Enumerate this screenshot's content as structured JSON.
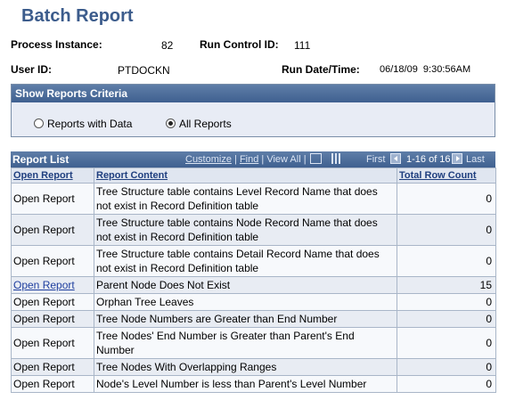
{
  "page": {
    "title": "Batch Report"
  },
  "header": {
    "process_instance_label": "Process Instance:",
    "process_instance_value": "82",
    "run_control_label": "Run Control ID:",
    "run_control_value": "111",
    "user_id_label": "User ID:",
    "user_id_value": "PTDOCKN",
    "run_datetime_label": "Run Date/Time:",
    "run_datetime_value": "06/18/09  9:30:56AM"
  },
  "criteria": {
    "title": "Show Reports Criteria",
    "options": [
      {
        "label": "Reports with Data",
        "selected": false
      },
      {
        "label": "All Reports",
        "selected": true
      }
    ]
  },
  "report_list": {
    "title": "Report List",
    "customize": "Customize",
    "find": "Find",
    "view_all": "View All",
    "first": "First",
    "range": "1-16 of 16",
    "last": "Last",
    "columns": [
      "Open Report",
      "Report Content",
      "Total Row Count"
    ],
    "rows": [
      {
        "open": "Open Report",
        "content": "Tree Structure table contains Level Record Name that does not exist in Record Definition table",
        "count": "0"
      },
      {
        "open": "Open Report",
        "content": "Tree Structure table contains Node Record Name that does not exist in Record Definition table",
        "count": "0"
      },
      {
        "open": "Open Report",
        "content": "Tree Structure table contains Detail Record Name that does not exist in Record Definition table",
        "count": "0"
      },
      {
        "open": "Open Report",
        "content": "Parent Node Does Not Exist",
        "count": "15",
        "link": true
      },
      {
        "open": "Open Report",
        "content": "Orphan Tree Leaves",
        "count": "0"
      },
      {
        "open": "Open Report",
        "content": "Tree Node Numbers are Greater than End Number",
        "count": "0"
      },
      {
        "open": "Open Report",
        "content": "Tree Nodes' End Number is Greater than Parent's End Number",
        "count": "0"
      },
      {
        "open": "Open Report",
        "content": "Tree Nodes With Overlapping Ranges",
        "count": "0"
      },
      {
        "open": "Open Report",
        "content": "Node's Level Number is less than Parent's Level Number",
        "count": "0"
      }
    ]
  }
}
